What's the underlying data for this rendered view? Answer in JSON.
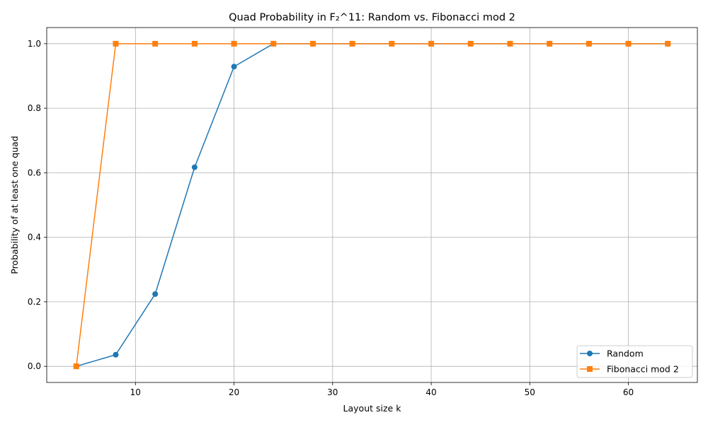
{
  "chart_data": {
    "type": "line",
    "title": "Quad Probability in F₂^11: Random vs. Fibonacci mod 2",
    "xlabel": "Layout size k",
    "ylabel": "Probability of at least one quad",
    "xlim": [
      1.0,
      67.0
    ],
    "ylim": [
      -0.05,
      1.05
    ],
    "x_ticks": [
      10,
      20,
      30,
      40,
      50,
      60
    ],
    "y_ticks": [
      0.0,
      0.2,
      0.4,
      0.6,
      0.8,
      1.0
    ],
    "x_tick_labels": [
      "10",
      "20",
      "30",
      "40",
      "50",
      "60"
    ],
    "y_tick_labels": [
      "0.0",
      "0.2",
      "0.4",
      "0.6",
      "0.8",
      "1.0"
    ],
    "grid": true,
    "legend_position": "lower-right",
    "x": [
      4,
      8,
      12,
      16,
      20,
      24,
      28,
      32,
      36,
      40,
      44,
      48,
      52,
      56,
      60,
      64
    ],
    "series": [
      {
        "name": "Random",
        "color": "#1f77b4",
        "marker": "circle",
        "values": [
          0.0,
          0.036,
          0.224,
          0.617,
          0.929,
          1.0,
          1.0,
          1.0,
          1.0,
          1.0,
          1.0,
          1.0,
          1.0,
          1.0,
          1.0,
          1.0
        ]
      },
      {
        "name": "Fibonacci mod 2",
        "color": "#ff7f0e",
        "marker": "square",
        "values": [
          0.0,
          1.0,
          1.0,
          1.0,
          1.0,
          1.0,
          1.0,
          1.0,
          1.0,
          1.0,
          1.0,
          1.0,
          1.0,
          1.0,
          1.0,
          1.0
        ]
      }
    ]
  }
}
